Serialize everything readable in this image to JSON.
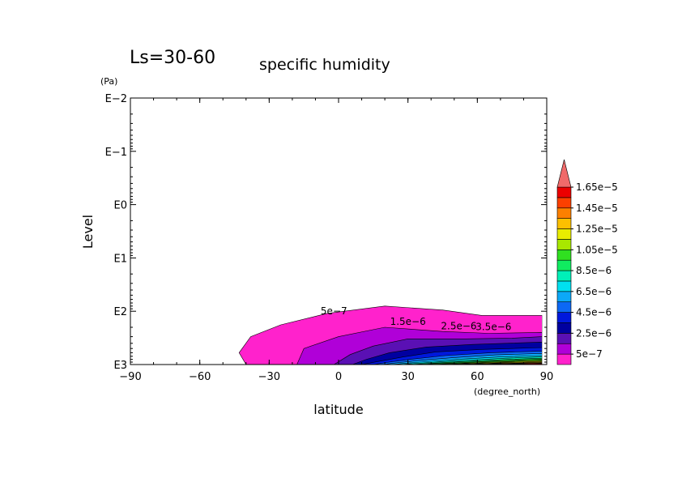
{
  "chart_data": {
    "type": "contour",
    "season_label": "Ls=30-60",
    "title": "specific humidity",
    "xlabel": "latitude",
    "x_unit": "(degree_north)",
    "ylabel": "Level",
    "y_unit": "(Pa)",
    "xlim": [
      -90,
      90
    ],
    "ylim": [
      1000,
      0.01
    ],
    "y_scale": "log",
    "x_ticks": [
      -90,
      -60,
      -30,
      0,
      30,
      60,
      90
    ],
    "x_tick_labels": [
      "−90",
      "−60",
      "−30",
      "0",
      "30",
      "60",
      "90"
    ],
    "y_ticks": [
      1000,
      100,
      10,
      1,
      0.1,
      0.01
    ],
    "y_tick_labels": [
      "E3",
      "E2",
      "E1",
      "E0",
      "E−1",
      "E−2"
    ],
    "colorbar": {
      "levels": [
        5e-07,
        1.5e-06,
        2.5e-06,
        3.5e-06,
        4.5e-06,
        5.5e-06,
        6.5e-06,
        7.5e-06,
        8.5e-06,
        9.5e-06,
        1.05e-05,
        1.15e-05,
        1.25e-05,
        1.35e-05,
        1.45e-05,
        1.55e-05,
        1.65e-05
      ],
      "colors": [
        "#ff22cc",
        "#b000d8",
        "#5a10b4",
        "#0000a0",
        "#0018dc",
        "#0c68f4",
        "#0ca8f8",
        "#00e0f0",
        "#00f0b8",
        "#10ec60",
        "#30e020",
        "#a8e800",
        "#e8ec00",
        "#fcc000",
        "#fc8000",
        "#fc4000",
        "#ec0000"
      ],
      "extend_color": "#f06a6a",
      "tick_labels": [
        "1.65e−5",
        "1.45e−5",
        "1.25e−5",
        "1.05e−5",
        "8.5e−6",
        "6.5e−6",
        "4.5e−6",
        "2.5e−6",
        "5e−7"
      ]
    },
    "contour_labels": [
      "5e−7",
      "1.5e−6",
      "2.5e−6",
      "3.5e−6"
    ],
    "contours": [
      {
        "level": 5e-07,
        "points": [
          [
            -40,
            1000
          ],
          [
            -43,
            600
          ],
          [
            -38,
            300
          ],
          [
            -25,
            180
          ],
          [
            -5,
            110
          ],
          [
            20,
            80
          ],
          [
            45,
            95
          ],
          [
            62,
            120
          ],
          [
            88,
            120
          ],
          [
            88,
            1000
          ]
        ]
      },
      {
        "level": 1.5e-06,
        "points": [
          [
            -18,
            1000
          ],
          [
            -15,
            500
          ],
          [
            0,
            300
          ],
          [
            20,
            200
          ],
          [
            45,
            240
          ],
          [
            65,
            260
          ],
          [
            88,
            250
          ],
          [
            88,
            1000
          ]
        ]
      },
      {
        "level": 2.5e-06,
        "points": [
          [
            -2,
            1000
          ],
          [
            5,
            650
          ],
          [
            15,
            450
          ],
          [
            30,
            330
          ],
          [
            55,
            330
          ],
          [
            75,
            320
          ],
          [
            88,
            300
          ],
          [
            88,
            1000
          ]
        ]
      },
      {
        "level": 3.5e-06,
        "points": [
          [
            6,
            1000
          ],
          [
            12,
            800
          ],
          [
            22,
            600
          ],
          [
            38,
            470
          ],
          [
            58,
            420
          ],
          [
            88,
            380
          ],
          [
            88,
            1000
          ]
        ]
      },
      {
        "level": 4.5e-06,
        "points": [
          [
            10,
            1000
          ],
          [
            17,
            880
          ],
          [
            28,
            720
          ],
          [
            42,
            580
          ],
          [
            62,
            520
          ],
          [
            88,
            480
          ],
          [
            88,
            1000
          ]
        ]
      },
      {
        "level": 5.5e-06,
        "points": [
          [
            15,
            1000
          ],
          [
            22,
            900
          ],
          [
            32,
            790
          ],
          [
            46,
            680
          ],
          [
            66,
            600
          ],
          [
            88,
            560
          ],
          [
            88,
            1000
          ]
        ]
      },
      {
        "level": 6.5e-06,
        "points": [
          [
            19,
            1000
          ],
          [
            26,
            920
          ],
          [
            36,
            830
          ],
          [
            50,
            740
          ],
          [
            68,
            660
          ],
          [
            88,
            620
          ],
          [
            88,
            1000
          ]
        ]
      },
      {
        "level": 7.5e-06,
        "points": [
          [
            23,
            1000
          ],
          [
            30,
            940
          ],
          [
            40,
            870
          ],
          [
            53,
            790
          ],
          [
            70,
            720
          ],
          [
            88,
            680
          ],
          [
            88,
            1000
          ]
        ]
      },
      {
        "level": 8.5e-06,
        "points": [
          [
            27,
            1000
          ],
          [
            34,
            950
          ],
          [
            44,
            890
          ],
          [
            56,
            830
          ],
          [
            72,
            760
          ],
          [
            88,
            720
          ],
          [
            88,
            1000
          ]
        ]
      },
      {
        "level": 9.5e-06,
        "points": [
          [
            31,
            1000
          ],
          [
            38,
            960
          ],
          [
            47,
            910
          ],
          [
            59,
            860
          ],
          [
            74,
            800
          ],
          [
            88,
            760
          ],
          [
            88,
            1000
          ]
        ]
      },
      {
        "level": 1.05e-05,
        "points": [
          [
            35,
            1000
          ],
          [
            41,
            970
          ],
          [
            50,
            930
          ],
          [
            62,
            880
          ],
          [
            76,
            830
          ],
          [
            88,
            790
          ],
          [
            88,
            1000
          ]
        ]
      },
      {
        "level": 1.15e-05,
        "points": [
          [
            39,
            1000
          ],
          [
            45,
            975
          ],
          [
            53,
            945
          ],
          [
            64,
            900
          ],
          [
            78,
            860
          ],
          [
            88,
            830
          ],
          [
            88,
            1000
          ]
        ]
      },
      {
        "level": 1.25e-05,
        "points": [
          [
            43,
            1000
          ],
          [
            49,
            980
          ],
          [
            56,
            955
          ],
          [
            66,
            920
          ],
          [
            79,
            885
          ],
          [
            88,
            860
          ],
          [
            88,
            1000
          ]
        ]
      },
      {
        "level": 1.35e-05,
        "points": [
          [
            47,
            1000
          ],
          [
            52,
            985
          ],
          [
            59,
            965
          ],
          [
            68,
            940
          ],
          [
            80,
            910
          ],
          [
            88,
            890
          ],
          [
            88,
            1000
          ]
        ]
      },
      {
        "level": 1.45e-05,
        "points": [
          [
            51,
            1000
          ],
          [
            56,
            988
          ],
          [
            62,
            972
          ],
          [
            70,
            955
          ],
          [
            81,
            935
          ],
          [
            88,
            920
          ],
          [
            88,
            1000
          ]
        ]
      },
      {
        "level": 1.55e-05,
        "points": [
          [
            55,
            1000
          ],
          [
            60,
            990
          ],
          [
            65,
            980
          ],
          [
            72,
            965
          ],
          [
            82,
            950
          ],
          [
            88,
            940
          ],
          [
            88,
            1000
          ]
        ]
      },
      {
        "level": 1.65e-05,
        "points": [
          [
            59,
            1000
          ],
          [
            64,
            992
          ],
          [
            69,
            985
          ],
          [
            75,
            975
          ],
          [
            84,
            965
          ],
          [
            88,
            960
          ],
          [
            88,
            1000
          ]
        ]
      }
    ]
  }
}
